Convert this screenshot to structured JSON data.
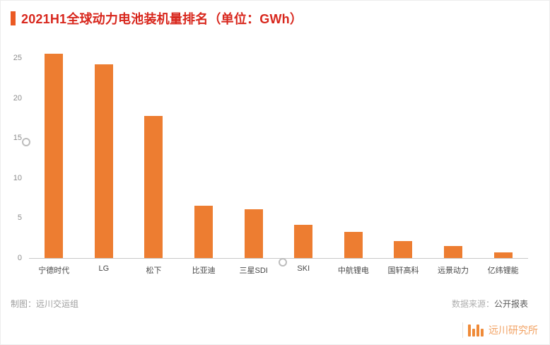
{
  "header": {
    "title": "2021H1全球动力电池装机量排名（单位：GWh）"
  },
  "chart_data": {
    "type": "bar",
    "title": "2021H1全球动力电池装机量排名（单位：GWh）",
    "categories": [
      "宁德时代",
      "LG",
      "松下",
      "比亚迪",
      "三星SDI",
      "SKI",
      "中航锂电",
      "国轩高科",
      "远景动力",
      "亿纬锂能"
    ],
    "values": [
      25.5,
      24.2,
      17.8,
      6.5,
      6.1,
      4.2,
      3.3,
      2.1,
      1.5,
      0.7
    ],
    "xlabel": "",
    "ylabel": "GWh",
    "ylim": [
      0,
      26.5
    ],
    "yticks": [
      0,
      5,
      10,
      15,
      20,
      25
    ],
    "bar_color": "#ED7D31",
    "grid": false,
    "legend": false
  },
  "footer": {
    "credit": "制图：远川交运组",
    "source_label": "数据来源：",
    "source_value": "公开报表",
    "brand": "远川研究所"
  },
  "colors": {
    "title_red": "#D8271D",
    "accent_orange": "#EB5A24",
    "bar_orange": "#ED7D31",
    "brand_orange": "#F2A263",
    "axis_gray": "#8c8c8c"
  }
}
